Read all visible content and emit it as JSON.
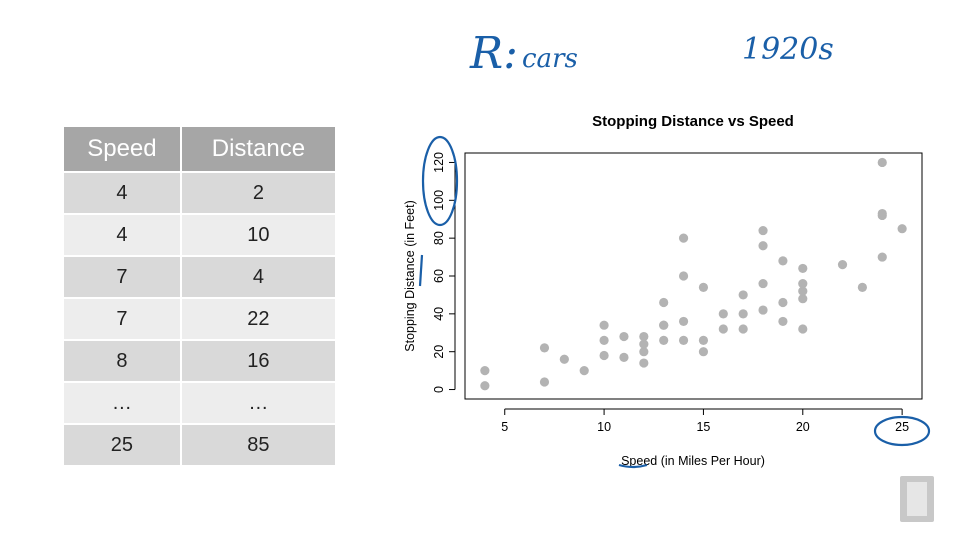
{
  "notes": {
    "title_letter": "R:",
    "title_rest": "cars",
    "year": "1920s"
  },
  "table": {
    "headers": [
      "Speed",
      "Distance"
    ],
    "rows": [
      [
        "4",
        "2"
      ],
      [
        "4",
        "10"
      ],
      [
        "7",
        "4"
      ],
      [
        "7",
        "22"
      ],
      [
        "8",
        "16"
      ],
      [
        "…",
        "…"
      ],
      [
        "25",
        "85"
      ]
    ]
  },
  "chart_data": {
    "type": "scatter",
    "title": "Stopping Distance vs Speed",
    "xlabel": "Speed (in Miles Per Hour)",
    "ylabel": "Stopping Distance (in Feet)",
    "xlim": [
      3,
      26
    ],
    "ylim": [
      -5,
      125
    ],
    "xticks": [
      5,
      10,
      15,
      20,
      25
    ],
    "yticks": [
      0,
      20,
      40,
      60,
      80,
      100,
      120
    ],
    "point_color": "#b3b3b3",
    "annotation_color": "#1a5fa8",
    "points": [
      [
        4,
        2
      ],
      [
        4,
        10
      ],
      [
        7,
        4
      ],
      [
        7,
        22
      ],
      [
        8,
        16
      ],
      [
        9,
        10
      ],
      [
        10,
        18
      ],
      [
        10,
        26
      ],
      [
        10,
        34
      ],
      [
        11,
        17
      ],
      [
        11,
        28
      ],
      [
        12,
        14
      ],
      [
        12,
        20
      ],
      [
        12,
        24
      ],
      [
        12,
        28
      ],
      [
        13,
        26
      ],
      [
        13,
        34
      ],
      [
        13,
        34
      ],
      [
        13,
        46
      ],
      [
        14,
        26
      ],
      [
        14,
        36
      ],
      [
        14,
        60
      ],
      [
        14,
        80
      ],
      [
        15,
        20
      ],
      [
        15,
        26
      ],
      [
        15,
        54
      ],
      [
        16,
        32
      ],
      [
        16,
        40
      ],
      [
        17,
        32
      ],
      [
        17,
        40
      ],
      [
        17,
        50
      ],
      [
        18,
        42
      ],
      [
        18,
        56
      ],
      [
        18,
        76
      ],
      [
        18,
        84
      ],
      [
        19,
        36
      ],
      [
        19,
        46
      ],
      [
        19,
        68
      ],
      [
        20,
        32
      ],
      [
        20,
        48
      ],
      [
        20,
        52
      ],
      [
        20,
        56
      ],
      [
        20,
        64
      ],
      [
        22,
        66
      ],
      [
        23,
        54
      ],
      [
        24,
        70
      ],
      [
        24,
        92
      ],
      [
        24,
        93
      ],
      [
        24,
        120
      ],
      [
        25,
        85
      ]
    ]
  }
}
